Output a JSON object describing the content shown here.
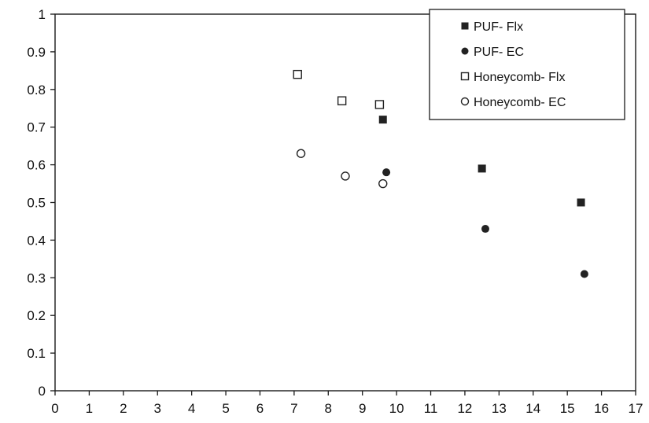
{
  "chart_data": {
    "type": "scatter",
    "title": "",
    "xlabel": "",
    "ylabel": "",
    "xlim": [
      0,
      17
    ],
    "ylim": [
      0,
      1
    ],
    "x_ticks": [
      0,
      1,
      2,
      3,
      4,
      5,
      6,
      7,
      8,
      9,
      10,
      11,
      12,
      13,
      14,
      15,
      16,
      17
    ],
    "y_ticks": [
      0,
      0.1,
      0.2,
      0.3,
      0.4,
      0.5,
      0.6,
      0.7,
      0.8,
      0.9,
      1
    ],
    "grid": false,
    "legend": {
      "placement": "top-right"
    },
    "series": [
      {
        "name": "PUF- Flx",
        "marker": "filled-square",
        "color": "#222222",
        "x": [
          9.6,
          12.5,
          15.4
        ],
        "y": [
          0.72,
          0.59,
          0.5
        ]
      },
      {
        "name": "PUF- EC",
        "marker": "filled-circle",
        "color": "#222222",
        "x": [
          9.7,
          12.6,
          15.5
        ],
        "y": [
          0.58,
          0.43,
          0.31
        ]
      },
      {
        "name": "Honeycomb- Flx",
        "marker": "open-square",
        "color": "#222222",
        "x": [
          7.1,
          8.4,
          9.5
        ],
        "y": [
          0.84,
          0.77,
          0.76
        ]
      },
      {
        "name": "Honeycomb- EC",
        "marker": "open-circle",
        "color": "#222222",
        "x": [
          7.2,
          8.5,
          9.6
        ],
        "y": [
          0.63,
          0.57,
          0.55
        ]
      }
    ]
  }
}
